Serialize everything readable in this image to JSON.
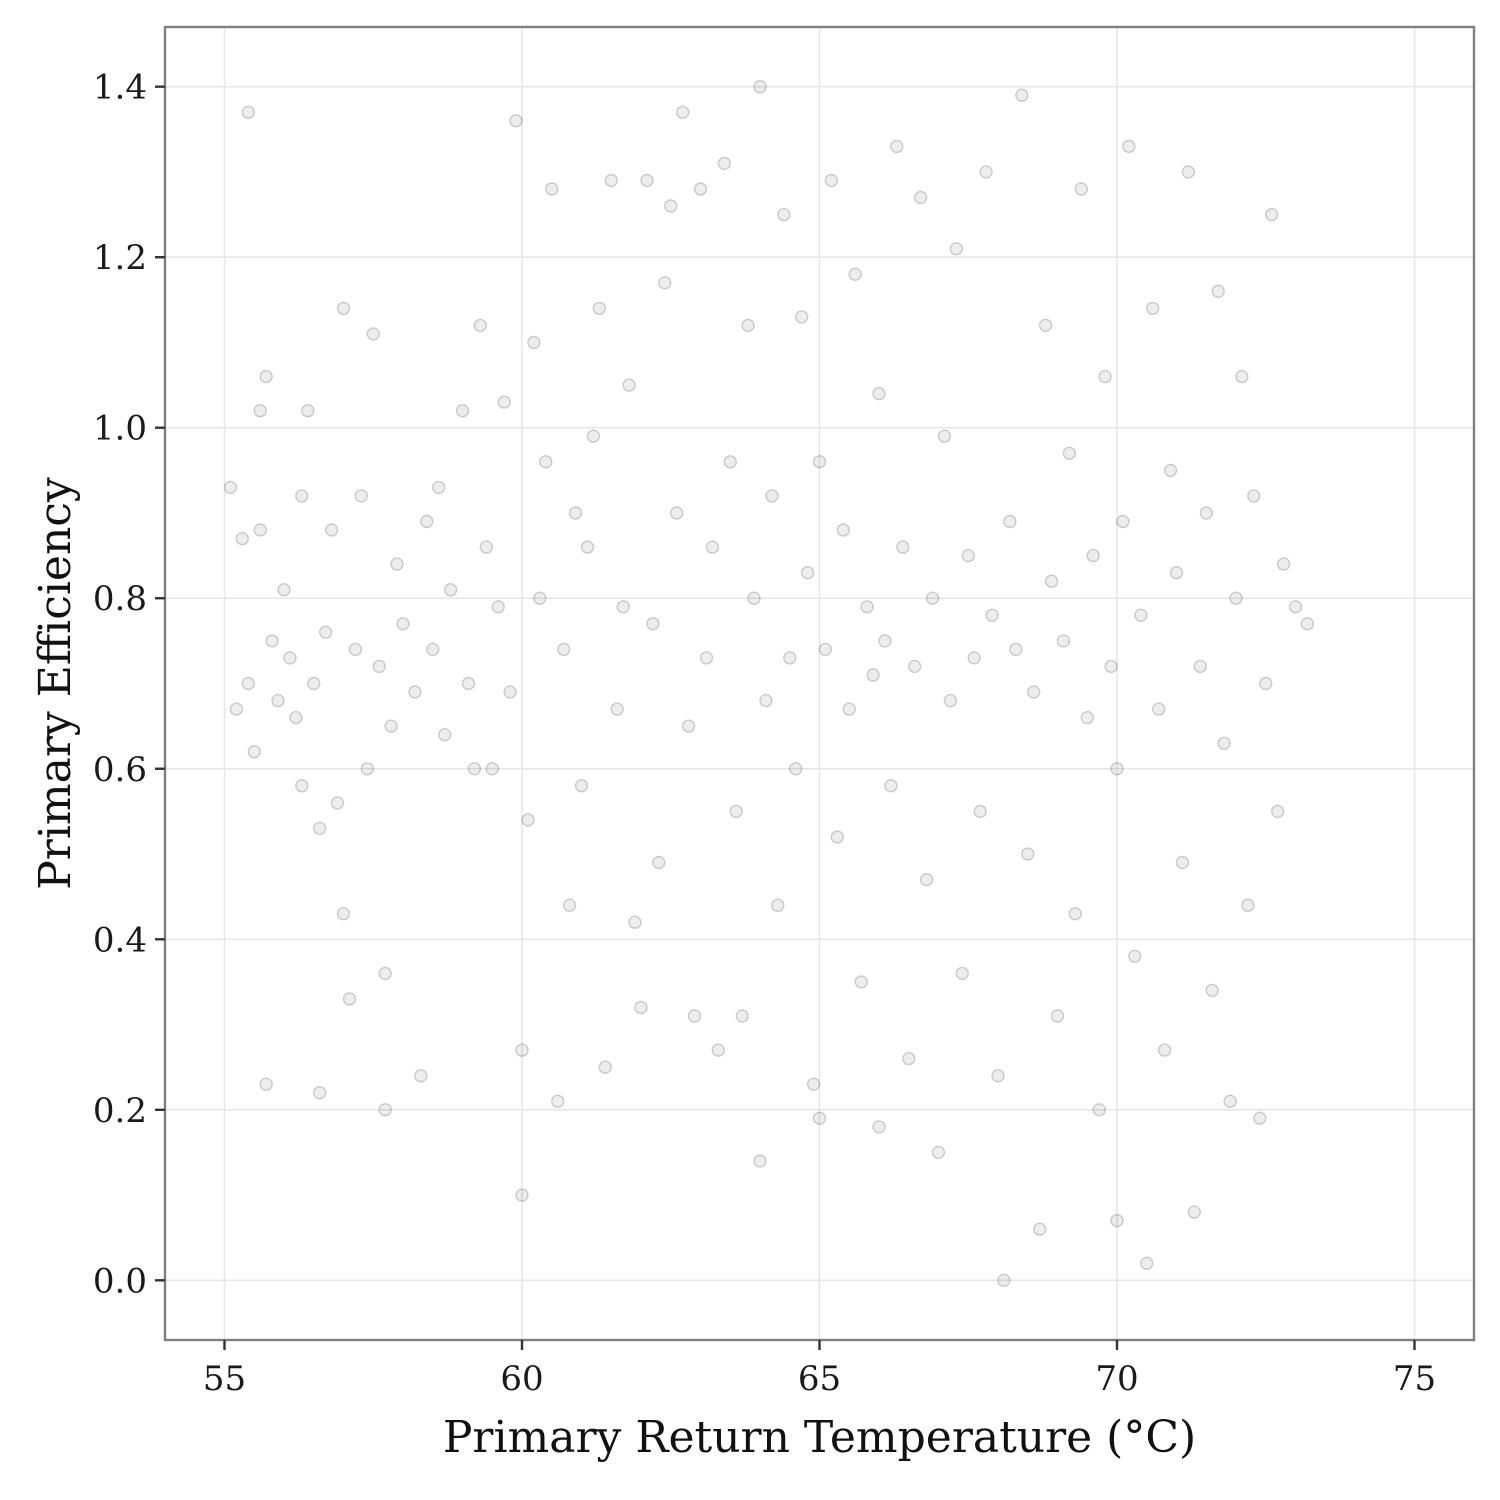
{
  "chart_data": {
    "type": "scatter",
    "xlabel": "Primary Return Temperature (°C)",
    "ylabel": "Primary Efficiency",
    "xlim": [
      54.0,
      76.0
    ],
    "ylim": [
      -0.07,
      1.47
    ],
    "x_ticks": [
      55,
      60,
      65,
      70,
      75
    ],
    "x_tick_labels": [
      "55",
      "60",
      "65",
      "70",
      "75"
    ],
    "y_ticks": [
      0.0,
      0.2,
      0.4,
      0.6,
      0.8,
      1.0,
      1.2,
      1.4
    ],
    "y_tick_labels": [
      "0.0",
      "0.2",
      "0.4",
      "0.6",
      "0.8",
      "1.0",
      "1.2",
      "1.4"
    ],
    "grid": true,
    "legend": "none",
    "point_color": "#000000",
    "point_alpha": 0.07,
    "series": [
      {
        "points": [
          [
            55.1,
            0.93
          ],
          [
            55.2,
            0.67
          ],
          [
            55.3,
            0.87
          ],
          [
            55.4,
            0.7
          ],
          [
            55.4,
            1.37
          ],
          [
            55.5,
            0.62
          ],
          [
            55.6,
            0.88
          ],
          [
            55.6,
            1.02
          ],
          [
            55.7,
            0.23
          ],
          [
            55.7,
            1.06
          ],
          [
            55.8,
            0.75
          ],
          [
            55.9,
            0.68
          ],
          [
            56.0,
            0.81
          ],
          [
            56.1,
            0.73
          ],
          [
            56.2,
            0.66
          ],
          [
            56.3,
            0.58
          ],
          [
            56.3,
            0.92
          ],
          [
            56.4,
            1.02
          ],
          [
            56.5,
            0.7
          ],
          [
            56.6,
            0.53
          ],
          [
            56.6,
            0.22
          ],
          [
            56.7,
            0.76
          ],
          [
            56.8,
            0.88
          ],
          [
            56.9,
            0.56
          ],
          [
            57.0,
            1.14
          ],
          [
            57.0,
            0.43
          ],
          [
            57.1,
            0.33
          ],
          [
            57.2,
            0.74
          ],
          [
            57.3,
            0.92
          ],
          [
            57.4,
            0.6
          ],
          [
            57.5,
            1.11
          ],
          [
            57.6,
            0.72
          ],
          [
            57.7,
            0.36
          ],
          [
            57.7,
            0.2
          ],
          [
            57.8,
            0.65
          ],
          [
            57.9,
            0.84
          ],
          [
            58.0,
            0.77
          ],
          [
            58.2,
            0.69
          ],
          [
            58.3,
            0.24
          ],
          [
            58.4,
            0.89
          ],
          [
            58.5,
            0.74
          ],
          [
            58.6,
            0.93
          ],
          [
            58.7,
            0.64
          ],
          [
            58.8,
            0.81
          ],
          [
            59.0,
            1.02
          ],
          [
            59.1,
            0.7
          ],
          [
            59.2,
            0.6
          ],
          [
            59.3,
            1.12
          ],
          [
            59.4,
            0.86
          ],
          [
            59.5,
            0.6
          ],
          [
            59.6,
            0.79
          ],
          [
            59.7,
            1.03
          ],
          [
            59.8,
            0.69
          ],
          [
            59.9,
            1.36
          ],
          [
            60.0,
            0.27
          ],
          [
            60.0,
            0.1
          ],
          [
            60.1,
            0.54
          ],
          [
            60.2,
            1.1
          ],
          [
            60.3,
            0.8
          ],
          [
            60.4,
            0.96
          ],
          [
            60.5,
            1.28
          ],
          [
            60.6,
            0.21
          ],
          [
            60.7,
            0.74
          ],
          [
            60.8,
            0.44
          ],
          [
            60.9,
            0.9
          ],
          [
            61.0,
            0.58
          ],
          [
            61.1,
            0.86
          ],
          [
            61.2,
            0.99
          ],
          [
            61.3,
            1.14
          ],
          [
            61.4,
            0.25
          ],
          [
            61.5,
            1.29
          ],
          [
            61.6,
            0.67
          ],
          [
            61.7,
            0.79
          ],
          [
            61.8,
            1.05
          ],
          [
            61.9,
            0.42
          ],
          [
            62.0,
            0.32
          ],
          [
            62.1,
            1.29
          ],
          [
            62.2,
            0.77
          ],
          [
            62.3,
            0.49
          ],
          [
            62.4,
            1.17
          ],
          [
            62.5,
            1.26
          ],
          [
            62.6,
            0.9
          ],
          [
            62.7,
            1.37
          ],
          [
            62.8,
            0.65
          ],
          [
            62.9,
            0.31
          ],
          [
            63.0,
            1.28
          ],
          [
            63.1,
            0.73
          ],
          [
            63.2,
            0.86
          ],
          [
            63.3,
            0.27
          ],
          [
            63.4,
            1.31
          ],
          [
            63.5,
            0.96
          ],
          [
            63.6,
            0.55
          ],
          [
            63.7,
            0.31
          ],
          [
            63.8,
            1.12
          ],
          [
            63.9,
            0.8
          ],
          [
            64.0,
            1.4
          ],
          [
            64.0,
            0.14
          ],
          [
            64.1,
            0.68
          ],
          [
            64.2,
            0.92
          ],
          [
            64.3,
            0.44
          ],
          [
            64.4,
            1.25
          ],
          [
            64.5,
            0.73
          ],
          [
            64.6,
            0.6
          ],
          [
            64.7,
            1.13
          ],
          [
            64.8,
            0.83
          ],
          [
            64.9,
            0.23
          ],
          [
            65.0,
            0.96
          ],
          [
            65.0,
            0.19
          ],
          [
            65.1,
            0.74
          ],
          [
            65.2,
            1.29
          ],
          [
            65.3,
            0.52
          ],
          [
            65.4,
            0.88
          ],
          [
            65.5,
            0.67
          ],
          [
            65.6,
            1.18
          ],
          [
            65.7,
            0.35
          ],
          [
            65.8,
            0.79
          ],
          [
            65.9,
            0.71
          ],
          [
            66.0,
            1.04
          ],
          [
            66.0,
            0.18
          ],
          [
            66.1,
            0.75
          ],
          [
            66.2,
            0.58
          ],
          [
            66.3,
            1.33
          ],
          [
            66.4,
            0.86
          ],
          [
            66.5,
            0.26
          ],
          [
            66.6,
            0.72
          ],
          [
            66.7,
            1.27
          ],
          [
            66.8,
            0.47
          ],
          [
            66.9,
            0.8
          ],
          [
            67.0,
            0.15
          ],
          [
            67.1,
            0.99
          ],
          [
            67.2,
            0.68
          ],
          [
            67.3,
            1.21
          ],
          [
            67.4,
            0.36
          ],
          [
            67.5,
            0.85
          ],
          [
            67.6,
            0.73
          ],
          [
            67.7,
            0.55
          ],
          [
            67.8,
            1.3
          ],
          [
            67.9,
            0.78
          ],
          [
            68.0,
            0.24
          ],
          [
            68.1,
            0.0
          ],
          [
            68.2,
            0.89
          ],
          [
            68.3,
            0.74
          ],
          [
            68.4,
            1.39
          ],
          [
            68.5,
            0.5
          ],
          [
            68.6,
            0.69
          ],
          [
            68.7,
            0.06
          ],
          [
            68.8,
            1.12
          ],
          [
            68.9,
            0.82
          ],
          [
            69.0,
            0.31
          ],
          [
            69.1,
            0.75
          ],
          [
            69.2,
            0.97
          ],
          [
            69.3,
            0.43
          ],
          [
            69.4,
            1.28
          ],
          [
            69.5,
            0.66
          ],
          [
            69.6,
            0.85
          ],
          [
            69.7,
            0.2
          ],
          [
            69.8,
            1.06
          ],
          [
            69.9,
            0.72
          ],
          [
            70.0,
            0.07
          ],
          [
            70.0,
            0.6
          ],
          [
            70.1,
            0.89
          ],
          [
            70.2,
            1.33
          ],
          [
            70.3,
            0.38
          ],
          [
            70.4,
            0.78
          ],
          [
            70.5,
            0.02
          ],
          [
            70.6,
            1.14
          ],
          [
            70.7,
            0.67
          ],
          [
            70.8,
            0.27
          ],
          [
            70.9,
            0.95
          ],
          [
            71.0,
            0.83
          ],
          [
            71.1,
            0.49
          ],
          [
            71.2,
            1.3
          ],
          [
            71.3,
            0.08
          ],
          [
            71.4,
            0.72
          ],
          [
            71.5,
            0.9
          ],
          [
            71.6,
            0.34
          ],
          [
            71.7,
            1.16
          ],
          [
            71.8,
            0.63
          ],
          [
            71.9,
            0.21
          ],
          [
            72.0,
            0.8
          ],
          [
            72.1,
            1.06
          ],
          [
            72.2,
            0.44
          ],
          [
            72.3,
            0.92
          ],
          [
            72.4,
            0.19
          ],
          [
            72.5,
            0.7
          ],
          [
            72.6,
            1.25
          ],
          [
            72.7,
            0.55
          ],
          [
            72.8,
            0.84
          ],
          [
            73.0,
            0.79
          ],
          [
            73.2,
            0.77
          ]
        ]
      }
    ]
  }
}
